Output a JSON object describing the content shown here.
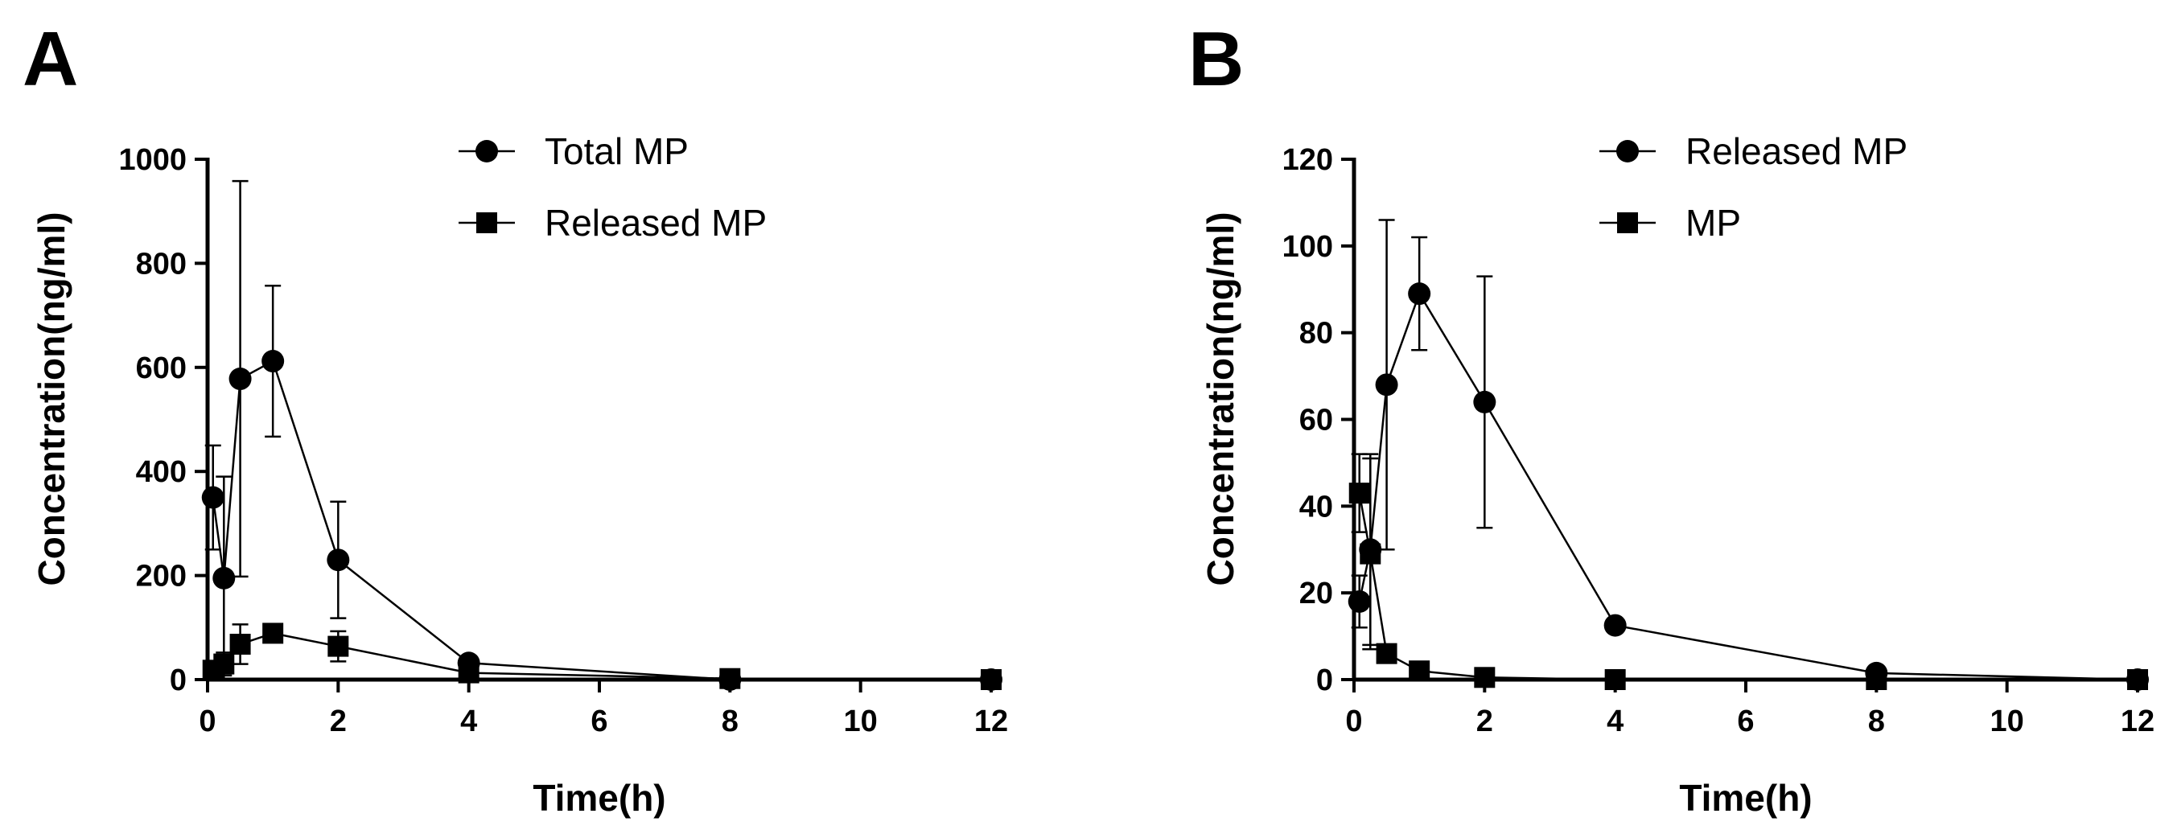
{
  "chart_data": [
    {
      "panel": "A",
      "type": "line",
      "xlabel": "Time(h)",
      "ylabel": "Concentration(ng/ml)",
      "xlim": [
        0,
        12
      ],
      "ylim": [
        0,
        1000
      ],
      "xticks": [
        0,
        2,
        4,
        6,
        8,
        10,
        12
      ],
      "yticks": [
        0,
        200,
        400,
        600,
        800,
        1000
      ],
      "legend_position": "top",
      "series": [
        {
          "name": "Total MP",
          "marker": "circle",
          "x": [
            0.083,
            0.25,
            0.5,
            1,
            2,
            4,
            8,
            12
          ],
          "y": [
            350,
            195,
            578,
            612,
            230,
            32,
            0,
            0
          ],
          "err": [
            100,
            195,
            380,
            145,
            112,
            8,
            0,
            0
          ]
        },
        {
          "name": "Released MP",
          "marker": "square",
          "x": [
            0.083,
            0.25,
            0.5,
            1,
            2,
            4,
            8,
            12
          ],
          "y": [
            18,
            30,
            68,
            89,
            64,
            13,
            2,
            0
          ],
          "err": [
            6,
            22,
            38,
            13,
            29,
            2,
            1,
            0
          ]
        }
      ]
    },
    {
      "panel": "B",
      "type": "line",
      "xlabel": "Time(h)",
      "ylabel": "Concentration(ng/ml)",
      "xlim": [
        0,
        12
      ],
      "ylim": [
        0,
        120
      ],
      "xticks": [
        0,
        2,
        4,
        6,
        8,
        10,
        12
      ],
      "yticks": [
        0,
        20,
        40,
        60,
        80,
        100,
        120
      ],
      "legend_position": "top",
      "series": [
        {
          "name": "Released MP",
          "marker": "circle",
          "x": [
            0.083,
            0.25,
            0.5,
            1,
            2,
            4,
            8,
            12
          ],
          "y": [
            18,
            30,
            68,
            89,
            64,
            12.5,
            1.5,
            0
          ],
          "err": [
            6,
            22,
            38,
            13,
            29,
            0,
            0,
            0
          ]
        },
        {
          "name": "MP",
          "marker": "square",
          "x": [
            0.083,
            0.25,
            0.5,
            1,
            2,
            4,
            8,
            12
          ],
          "y": [
            43,
            29,
            6,
            2,
            0.5,
            0,
            0,
            0
          ],
          "err": [
            9,
            22,
            0,
            0,
            0,
            0,
            0,
            0
          ]
        }
      ]
    }
  ]
}
